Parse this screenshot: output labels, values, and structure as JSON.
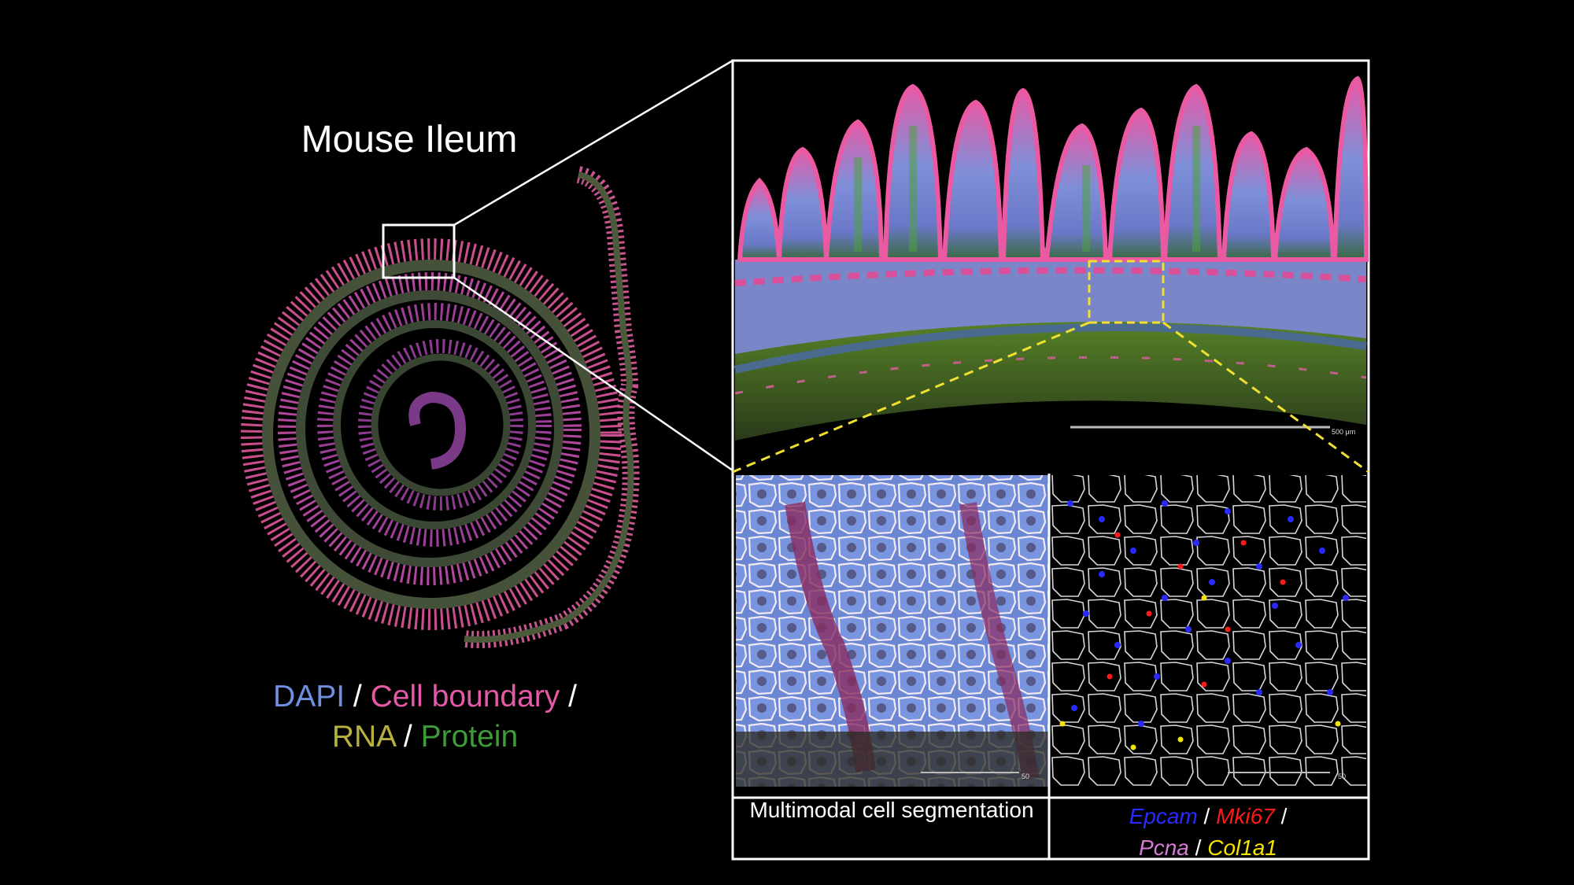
{
  "figure": {
    "title": "Mouse Ileum",
    "stain_legend": {
      "dapi": "DAPI",
      "cell_boundary": "Cell boundary",
      "rna": "RNA",
      "protein": "Protein",
      "separator": "/"
    },
    "segmentation_label": "Multimodal cell segmentation",
    "gene_legend": {
      "epcam": "Epcam",
      "mki67": "Mki67",
      "pcna": "Pcna",
      "col1a1": "Col1a1",
      "separator": "/"
    },
    "scale_bar_top": "500 μm",
    "scale_bar_bottom_left": "50",
    "scale_bar_bottom_right": "50"
  },
  "colors": {
    "background": "#000000",
    "dapi": "#6f8fe0",
    "cell_boundary": "#e55aa6",
    "rna": "#b8b23c",
    "protein": "#3f9a3a",
    "epcam": "#2a2aff",
    "mki67": "#ff1a1a",
    "pcna": "#d67ad6",
    "col1a1": "#f5e400",
    "zoom_box": "#ffffff",
    "inset_box": "#f0e030"
  }
}
